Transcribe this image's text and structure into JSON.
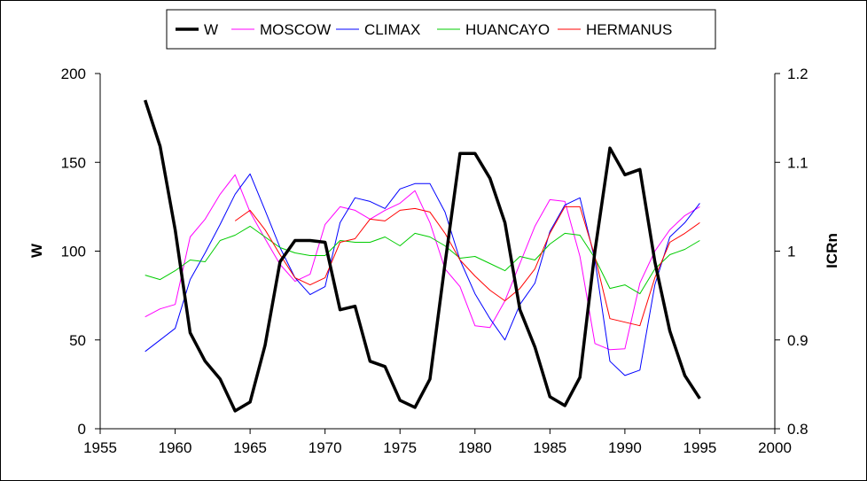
{
  "chart_data": {
    "type": "line",
    "title": "",
    "xlabel": "",
    "ylabel": "W",
    "y2label": "ICRn",
    "xlim": [
      1955,
      2000
    ],
    "xticks": [
      1955,
      1960,
      1965,
      1970,
      1975,
      1980,
      1985,
      1990,
      1995,
      2000
    ],
    "ylim": [
      0,
      200
    ],
    "yticks": [
      0,
      50,
      100,
      150,
      200
    ],
    "y2lim": [
      0.8,
      1.2
    ],
    "y2ticks": [
      "0.8",
      "0.9",
      "1",
      "1.1",
      "1.2"
    ],
    "grid": false,
    "legend_position": "top-center",
    "series": [
      {
        "name": "W",
        "axis": "left",
        "color": "#000000",
        "x": [
          1958,
          1959,
          1960,
          1961,
          1962,
          1963,
          1964,
          1965,
          1966,
          1967,
          1968,
          1969,
          1970,
          1971,
          1972,
          1973,
          1974,
          1975,
          1976,
          1977,
          1978,
          1979,
          1980,
          1981,
          1982,
          1983,
          1984,
          1985,
          1986,
          1987,
          1988,
          1989,
          1990,
          1991,
          1992,
          1993,
          1994,
          1995
        ],
        "y": [
          185,
          159,
          112,
          54,
          38,
          28,
          10,
          15,
          47,
          94,
          106,
          106,
          105,
          67,
          69,
          38,
          35,
          16,
          12,
          28,
          93,
          155,
          155,
          141,
          116,
          67,
          46,
          18,
          13,
          29,
          100,
          158,
          143,
          146,
          94,
          55,
          30,
          17
        ]
      },
      {
        "name": "MOSCOW",
        "axis": "right",
        "color": "#ff00ff",
        "x": [
          1958,
          1959,
          1960,
          1961,
          1962,
          1963,
          1964,
          1965,
          1966,
          1967,
          1968,
          1969,
          1970,
          1971,
          1972,
          1973,
          1974,
          1975,
          1976,
          1977,
          1978,
          1979,
          1980,
          1981,
          1982,
          1983,
          1984,
          1985,
          1986,
          1987,
          1988,
          1989,
          1990,
          1991,
          1992,
          1993,
          1994,
          1995
        ],
        "y": [
          0.926,
          0.935,
          0.94,
          1.016,
          1.036,
          1.064,
          1.086,
          1.044,
          1.014,
          0.985,
          0.966,
          0.974,
          1.03,
          1.05,
          1.046,
          1.036,
          1.046,
          1.054,
          1.068,
          1.032,
          0.98,
          0.96,
          0.916,
          0.914,
          0.944,
          0.986,
          1.028,
          1.058,
          1.056,
          0.994,
          0.896,
          0.889,
          0.89,
          0.964,
          1.0,
          1.024,
          1.04,
          1.05
        ]
      },
      {
        "name": "CLIMAX",
        "axis": "right",
        "color": "#0000ff",
        "x": [
          1958,
          1959,
          1960,
          1961,
          1962,
          1963,
          1964,
          1965,
          1966,
          1967,
          1968,
          1969,
          1970,
          1971,
          1972,
          1973,
          1974,
          1975,
          1976,
          1977,
          1978,
          1979,
          1980,
          1981,
          1982,
          1983,
          1984,
          1985,
          1986,
          1987,
          1988,
          1989,
          1990,
          1991,
          1992,
          1993,
          1994,
          1995
        ],
        "y": [
          0.887,
          0.9,
          0.913,
          0.968,
          0.998,
          1.03,
          1.064,
          1.087,
          1.046,
          1.004,
          0.97,
          0.951,
          0.96,
          1.032,
          1.06,
          1.056,
          1.048,
          1.07,
          1.076,
          1.076,
          1.044,
          0.99,
          0.952,
          0.924,
          0.9,
          0.94,
          0.964,
          1.022,
          1.052,
          1.06,
          0.99,
          0.876,
          0.86,
          0.866,
          0.962,
          1.016,
          1.032,
          1.054
        ]
      },
      {
        "name": "HUANCAYO",
        "axis": "right",
        "color": "#00cc00",
        "x": [
          1958,
          1959,
          1960,
          1961,
          1962,
          1963,
          1964,
          1965,
          1966,
          1967,
          1968,
          1969,
          1970,
          1971,
          1972,
          1973,
          1974,
          1975,
          1976,
          1977,
          1978,
          1979,
          1980,
          1981,
          1982,
          1983,
          1984,
          1985,
          1986,
          1987,
          1988,
          1989,
          1990,
          1991,
          1992,
          1993,
          1994,
          1995
        ],
        "y": [
          0.973,
          0.968,
          0.978,
          0.99,
          0.988,
          1.012,
          1.018,
          1.028,
          1.016,
          1.004,
          0.998,
          0.995,
          0.995,
          1.012,
          1.01,
          1.01,
          1.016,
          1.006,
          1.02,
          1.016,
          1.006,
          0.992,
          0.994,
          0.986,
          0.978,
          0.994,
          0.99,
          1.008,
          1.02,
          1.018,
          0.992,
          0.958,
          0.962,
          0.952,
          0.98,
          0.996,
          1.002,
          1.012
        ]
      },
      {
        "name": "HERMANUS",
        "axis": "right",
        "color": "#ff0000",
        "x": [
          1964,
          1965,
          1966,
          1967,
          1968,
          1969,
          1970,
          1971,
          1972,
          1973,
          1974,
          1975,
          1976,
          1977,
          1978,
          1979,
          1980,
          1981,
          1982,
          1983,
          1984,
          1985,
          1986,
          1987,
          1988,
          1989,
          1990,
          1991,
          1992,
          1993,
          1994,
          1995
        ],
        "y": [
          1.034,
          1.046,
          1.024,
          0.996,
          0.97,
          0.962,
          0.97,
          1.01,
          1.014,
          1.036,
          1.034,
          1.046,
          1.048,
          1.044,
          1.02,
          0.99,
          0.972,
          0.956,
          0.944,
          0.958,
          0.98,
          1.02,
          1.05,
          1.05,
          0.994,
          0.924,
          0.92,
          0.916,
          0.97,
          1.01,
          1.02,
          1.032
        ]
      }
    ]
  }
}
